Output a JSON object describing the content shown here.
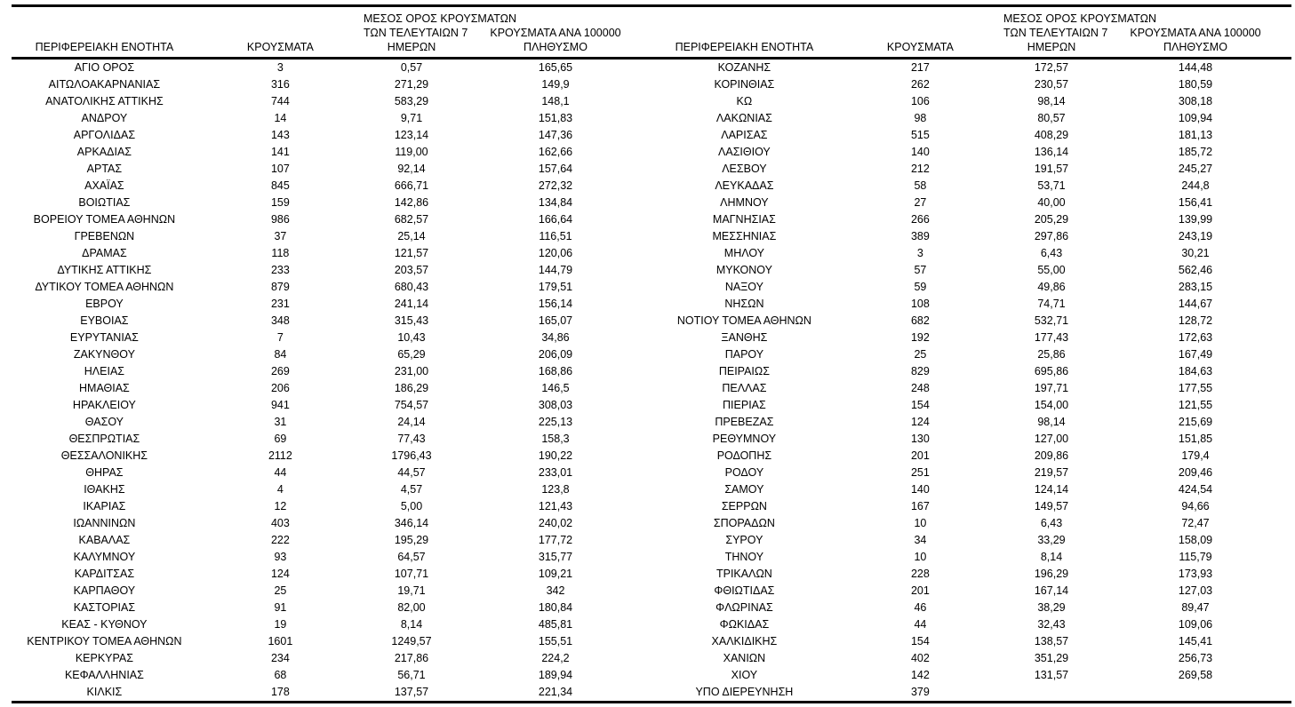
{
  "page": {
    "background": "#ffffff",
    "text_color": "#000000",
    "border_color": "#000000"
  },
  "header": {
    "region": "ΠΕΡΙΦΕΡΕΙΑΚΗ ΕΝΟΤΗΤΑ",
    "cases": "ΚΡΟΥΣΜΑΤΑ",
    "avg7_line1": "ΜΕΣΟΣ ΟΡΟΣ ΚΡΟΥΣΜΑΤΩΝ",
    "avg7_line2": "ΤΩΝ ΤΕΛΕΥΤΑΙΩΝ 7",
    "avg7_line3": "ΗΜΕΡΩΝ",
    "per100k_line1": "ΚΡΟΥΣΜΑΤΑ ΑΝΑ 100000",
    "per100k_line2": "ΠΛΗΘΥΣΜΟ"
  },
  "left_rows": [
    [
      "ΑΓΙΟ ΟΡΟΣ",
      "3",
      "0,57",
      "165,65"
    ],
    [
      "ΑΙΤΩΛΟΑΚΑΡΝΑΝΙΑΣ",
      "316",
      "271,29",
      "149,9"
    ],
    [
      "ΑΝΑΤΟΛΙΚΗΣ ΑΤΤΙΚΗΣ",
      "744",
      "583,29",
      "148,1"
    ],
    [
      "ΑΝΔΡΟΥ",
      "14",
      "9,71",
      "151,83"
    ],
    [
      "ΑΡΓΟΛΙΔΑΣ",
      "143",
      "123,14",
      "147,36"
    ],
    [
      "ΑΡΚΑΔΙΑΣ",
      "141",
      "119,00",
      "162,66"
    ],
    [
      "ΑΡΤΑΣ",
      "107",
      "92,14",
      "157,64"
    ],
    [
      "ΑΧΑΪΑΣ",
      "845",
      "666,71",
      "272,32"
    ],
    [
      "ΒΟΙΩΤΙΑΣ",
      "159",
      "142,86",
      "134,84"
    ],
    [
      "ΒΟΡΕΙΟΥ ΤΟΜΕΑ ΑΘΗΝΩΝ",
      "986",
      "682,57",
      "166,64"
    ],
    [
      "ΓΡΕΒΕΝΩΝ",
      "37",
      "25,14",
      "116,51"
    ],
    [
      "ΔΡΑΜΑΣ",
      "118",
      "121,57",
      "120,06"
    ],
    [
      "ΔΥΤΙΚΗΣ ΑΤΤΙΚΗΣ",
      "233",
      "203,57",
      "144,79"
    ],
    [
      "ΔΥΤΙΚΟΥ ΤΟΜΕΑ ΑΘΗΝΩΝ",
      "879",
      "680,43",
      "179,51"
    ],
    [
      "ΕΒΡΟΥ",
      "231",
      "241,14",
      "156,14"
    ],
    [
      "ΕΥΒΟΙΑΣ",
      "348",
      "315,43",
      "165,07"
    ],
    [
      "ΕΥΡΥΤΑΝΙΑΣ",
      "7",
      "10,43",
      "34,86"
    ],
    [
      "ΖΑΚΥΝΘΟΥ",
      "84",
      "65,29",
      "206,09"
    ],
    [
      "ΗΛΕΙΑΣ",
      "269",
      "231,00",
      "168,86"
    ],
    [
      "ΗΜΑΘΙΑΣ",
      "206",
      "186,29",
      "146,5"
    ],
    [
      "ΗΡΑΚΛΕΙΟΥ",
      "941",
      "754,57",
      "308,03"
    ],
    [
      "ΘΑΣΟΥ",
      "31",
      "24,14",
      "225,13"
    ],
    [
      "ΘΕΣΠΡΩΤΙΑΣ",
      "69",
      "77,43",
      "158,3"
    ],
    [
      "ΘΕΣΣΑΛΟΝΙΚΗΣ",
      "2112",
      "1796,43",
      "190,22"
    ],
    [
      "ΘΗΡΑΣ",
      "44",
      "44,57",
      "233,01"
    ],
    [
      "ΙΘΑΚΗΣ",
      "4",
      "4,57",
      "123,8"
    ],
    [
      "ΙΚΑΡΙΑΣ",
      "12",
      "5,00",
      "121,43"
    ],
    [
      "ΙΩΑΝΝΙΝΩΝ",
      "403",
      "346,14",
      "240,02"
    ],
    [
      "ΚΑΒΑΛΑΣ",
      "222",
      "195,29",
      "177,72"
    ],
    [
      "ΚΑΛΥΜΝΟΥ",
      "93",
      "64,57",
      "315,77"
    ],
    [
      "ΚΑΡΔΙΤΣΑΣ",
      "124",
      "107,71",
      "109,21"
    ],
    [
      "ΚΑΡΠΑΘΟΥ",
      "25",
      "19,71",
      "342"
    ],
    [
      "ΚΑΣΤΟΡΙΑΣ",
      "91",
      "82,00",
      "180,84"
    ],
    [
      "ΚΕΑΣ - ΚΥΘΝΟΥ",
      "19",
      "8,14",
      "485,81"
    ],
    [
      "ΚΕΝΤΡΙΚΟΥ ΤΟΜΕΑ ΑΘΗΝΩΝ",
      "1601",
      "1249,57",
      "155,51"
    ],
    [
      "ΚΕΡΚΥΡΑΣ",
      "234",
      "217,86",
      "224,2"
    ],
    [
      "ΚΕΦΑΛΛΗΝΙΑΣ",
      "68",
      "56,71",
      "189,94"
    ],
    [
      "ΚΙΛΚΙΣ",
      "178",
      "137,57",
      "221,34"
    ]
  ],
  "right_rows": [
    [
      "ΚΟΖΑΝΗΣ",
      "217",
      "172,57",
      "144,48"
    ],
    [
      "ΚΟΡΙΝΘΙΑΣ",
      "262",
      "230,57",
      "180,59"
    ],
    [
      "ΚΩ",
      "106",
      "98,14",
      "308,18"
    ],
    [
      "ΛΑΚΩΝΙΑΣ",
      "98",
      "80,57",
      "109,94"
    ],
    [
      "ΛΑΡΙΣΑΣ",
      "515",
      "408,29",
      "181,13"
    ],
    [
      "ΛΑΣΙΘΙΟΥ",
      "140",
      "136,14",
      "185,72"
    ],
    [
      "ΛΕΣΒΟΥ",
      "212",
      "191,57",
      "245,27"
    ],
    [
      "ΛΕΥΚΑΔΑΣ",
      "58",
      "53,71",
      "244,8"
    ],
    [
      "ΛΗΜΝΟΥ",
      "27",
      "40,00",
      "156,41"
    ],
    [
      "ΜΑΓΝΗΣΙΑΣ",
      "266",
      "205,29",
      "139,99"
    ],
    [
      "ΜΕΣΣΗΝΙΑΣ",
      "389",
      "297,86",
      "243,19"
    ],
    [
      "ΜΗΛΟΥ",
      "3",
      "6,43",
      "30,21"
    ],
    [
      "ΜΥΚΟΝΟΥ",
      "57",
      "55,00",
      "562,46"
    ],
    [
      "ΝΑΞΟΥ",
      "59",
      "49,86",
      "283,15"
    ],
    [
      "ΝΗΣΩΝ",
      "108",
      "74,71",
      "144,67"
    ],
    [
      "ΝΟΤΙΟΥ ΤΟΜΕΑ ΑΘΗΝΩΝ",
      "682",
      "532,71",
      "128,72"
    ],
    [
      "ΞΑΝΘΗΣ",
      "192",
      "177,43",
      "172,63"
    ],
    [
      "ΠΑΡΟΥ",
      "25",
      "25,86",
      "167,49"
    ],
    [
      "ΠΕΙΡΑΙΩΣ",
      "829",
      "695,86",
      "184,63"
    ],
    [
      "ΠΕΛΛΑΣ",
      "248",
      "197,71",
      "177,55"
    ],
    [
      "ΠΙΕΡΙΑΣ",
      "154",
      "154,00",
      "121,55"
    ],
    [
      "ΠΡΕΒΕΖΑΣ",
      "124",
      "98,14",
      "215,69"
    ],
    [
      "ΡΕΘΥΜΝΟΥ",
      "130",
      "127,00",
      "151,85"
    ],
    [
      "ΡΟΔΟΠΗΣ",
      "201",
      "209,86",
      "179,4"
    ],
    [
      "ΡΟΔΟΥ",
      "251",
      "219,57",
      "209,46"
    ],
    [
      "ΣΑΜΟΥ",
      "140",
      "124,14",
      "424,54"
    ],
    [
      "ΣΕΡΡΩΝ",
      "167",
      "149,57",
      "94,66"
    ],
    [
      "ΣΠΟΡΑΔΩΝ",
      "10",
      "6,43",
      "72,47"
    ],
    [
      "ΣΥΡΟΥ",
      "34",
      "33,29",
      "158,09"
    ],
    [
      "ΤΗΝΟΥ",
      "10",
      "8,14",
      "115,79"
    ],
    [
      "ΤΡΙΚΑΛΩΝ",
      "228",
      "196,29",
      "173,93"
    ],
    [
      "ΦΘΙΩΤΙΔΑΣ",
      "201",
      "167,14",
      "127,03"
    ],
    [
      "ΦΛΩΡΙΝΑΣ",
      "46",
      "38,29",
      "89,47"
    ],
    [
      "ΦΩΚΙΔΑΣ",
      "44",
      "32,43",
      "109,06"
    ],
    [
      "ΧΑΛΚΙΔΙΚΗΣ",
      "154",
      "138,57",
      "145,41"
    ],
    [
      "ΧΑΝΙΩΝ",
      "402",
      "351,29",
      "256,73"
    ],
    [
      "ΧΙΟΥ",
      "142",
      "131,57",
      "269,58"
    ],
    [
      "ΥΠΟ ΔΙΕΡΕΥΝΗΣΗ",
      "379",
      "",
      ""
    ]
  ]
}
